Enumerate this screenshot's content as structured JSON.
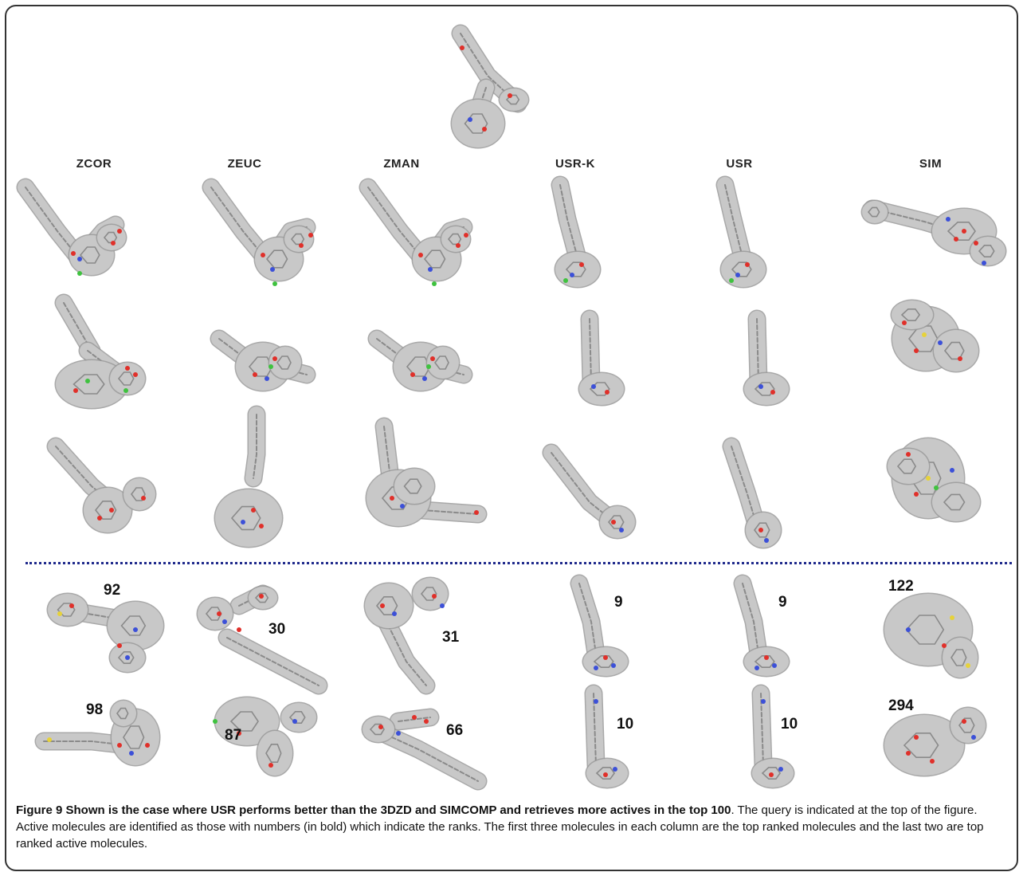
{
  "columns": [
    "ZCOR",
    "ZEUC",
    "ZMAN",
    "USR-K",
    "USR",
    "SIM"
  ],
  "ranks": {
    "zcor": [
      "92",
      "98"
    ],
    "zeuc": [
      "30",
      "87"
    ],
    "zman": [
      "31",
      "66"
    ],
    "usrk": [
      "9",
      "10"
    ],
    "usr": [
      "9",
      "10"
    ],
    "sim": [
      "122",
      "294"
    ]
  },
  "caption": {
    "lead": "Figure 9 Shown is the case where USR performs better than the 3DZD and SIMCOMP and retrieves more actives in the top 100",
    "body": ". The query is indicated at the top of the figure. Active molecules are identified as those with numbers (in bold) which indicate the ranks. The first three molecules in each column are the top ranked molecules and the last two are top ranked active molecules."
  },
  "colors": {
    "surface": "#c8c8c8",
    "surface_edge": "#9a9a9a",
    "stick": "#8a8a8a",
    "oxygen": "#e0302a",
    "nitrogen": "#3c50d8",
    "halogen": "#3fc23f",
    "sulfur": "#e6d23a",
    "divider": "#1f2a8c"
  }
}
